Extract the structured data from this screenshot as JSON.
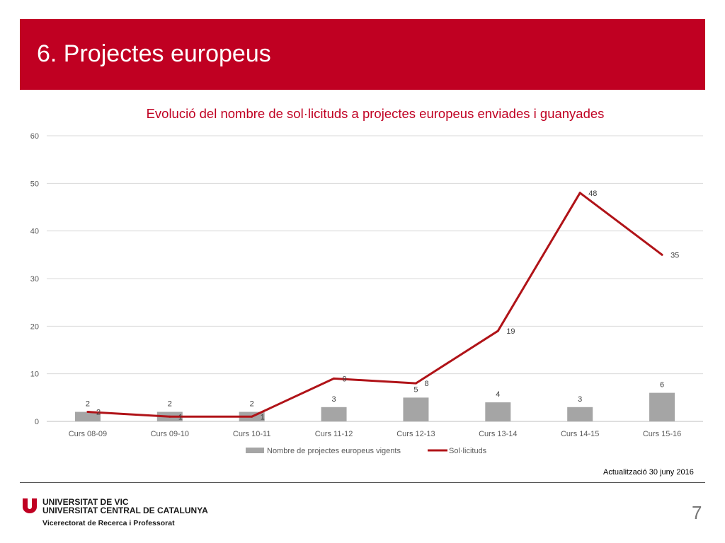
{
  "slide": {
    "title": "6. Projectes europeus",
    "updated": "Actualització 30 juny 2016",
    "page_number": "7"
  },
  "footer": {
    "university_line1": "UNIVERSITAT DE VIC",
    "university_line2": "UNIVERSITAT CENTRAL DE CATALUNYA",
    "vicerectorat": "Vicerectorat de Recerca i Professorat"
  },
  "colors": {
    "brand_red": "#c00022",
    "bar_gray": "#a5a5a5",
    "line_red": "#b01318"
  },
  "chart_data": {
    "type": "bar",
    "title": "Evolució del nombre de sol·licituds a projectes europeus enviades i guanyades",
    "xlabel": "",
    "ylabel": "",
    "ylim": [
      0,
      60
    ],
    "yticks": [
      0,
      10,
      20,
      30,
      40,
      50,
      60
    ],
    "grid": true,
    "legend": "bottom",
    "categories": [
      "Curs 08-09",
      "Curs 09-10",
      "Curs 10-11",
      "Curs 11-12",
      "Curs 12-13",
      "Curs 13-14",
      "Curs 14-15",
      "Curs 15-16"
    ],
    "series": [
      {
        "name": "Nombre de projectes europeus vigents",
        "type": "bar",
        "values": [
          2,
          2,
          2,
          3,
          5,
          4,
          3,
          6
        ]
      },
      {
        "name": "Sol·licituds",
        "type": "line",
        "values": [
          2,
          1,
          1,
          9,
          8,
          19,
          48,
          35
        ]
      }
    ]
  }
}
